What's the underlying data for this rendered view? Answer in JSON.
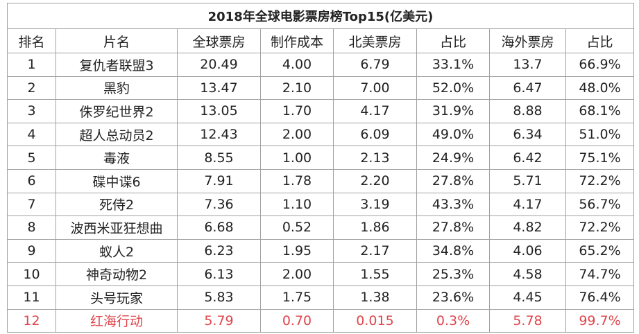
{
  "title": "2018年全球电影票房榜Top15(亿美元)",
  "table": {
    "header": [
      "排名",
      "片名",
      "全球票房",
      "制作成本",
      "北美票房",
      "占比",
      "海外票房",
      "占比"
    ],
    "rows": [
      [
        "1",
        "复仇者联盟3",
        "20.49",
        "4.00",
        "6.79",
        "33.1%",
        "13.7",
        "66.9%"
      ],
      [
        "2",
        "黑豹",
        "13.47",
        "2.10",
        "7.00",
        "52.0%",
        "6.47",
        "48.0%"
      ],
      [
        "3",
        "侏罗纪世界2",
        "13.05",
        "1.70",
        "4.17",
        "31.9%",
        "8.88",
        "68.1%"
      ],
      [
        "4",
        "超人总动员2",
        "12.43",
        "2.00",
        "6.09",
        "49.0%",
        "6.34",
        "51.0%"
      ],
      [
        "5",
        "毒液",
        "8.55",
        "1.00",
        "2.13",
        "24.9%",
        "6.42",
        "75.1%"
      ],
      [
        "6",
        "碟中谍6",
        "7.91",
        "1.78",
        "2.20",
        "27.8%",
        "5.71",
        "72.2%"
      ],
      [
        "7",
        "死侍2",
        "7.36",
        "1.10",
        "3.19",
        "43.3%",
        "4.17",
        "56.7%"
      ],
      [
        "8",
        "波西米亚狂想曲",
        "6.68",
        "0.52",
        "1.86",
        "27.8%",
        "4.82",
        "72.2%"
      ],
      [
        "9",
        "蚁人2",
        "6.23",
        "1.95",
        "2.17",
        "34.8%",
        "4.06",
        "65.2%"
      ],
      [
        "10",
        "神奇动物2",
        "6.13",
        "2.00",
        "1.55",
        "25.3%",
        "4.58",
        "74.7%"
      ],
      [
        "11",
        "头号玩家",
        "5.83",
        "1.75",
        "1.38",
        "23.6%",
        "4.45",
        "76.4%"
      ],
      [
        "12",
        "红海行动",
        "5.79",
        "0.70",
        "0.015",
        "0.3%",
        "5.78",
        "99.7%"
      ]
    ]
  }
}
